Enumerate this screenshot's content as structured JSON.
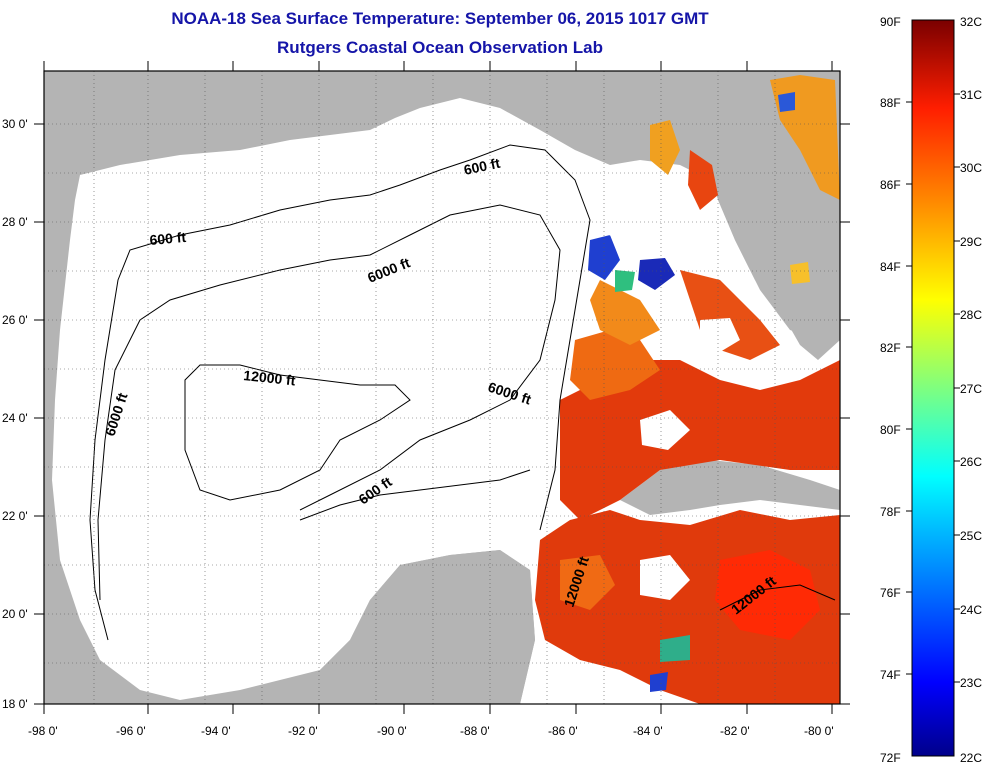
{
  "header": {
    "title": "NOAA-18 Sea Surface Temperature:  September 06, 2015 1017 GMT",
    "subtitle": "Rutgers Coastal Ocean Observation Lab"
  },
  "map": {
    "lon_labels": [
      "-98 0'",
      "-96 0'",
      "-94 0'",
      "-92 0'",
      "-90 0'",
      "-88 0'",
      "-86 0'",
      "-84 0'",
      "-82 0'",
      "-80 0'"
    ],
    "lat_labels": [
      "30 0'",
      "28 0'",
      "26 0'",
      "24 0'",
      "22 0'",
      "20 0'",
      "18 0'"
    ],
    "contour_labels": {
      "c600_n": "600 ft",
      "c600_w": "600 ft",
      "c6000_n": "6000 ft",
      "c6000_w": "6000 ft",
      "c12000_c": "12000 ft",
      "c6000_c": "6000 ft",
      "c600_s": "600 ft",
      "c12000_yuc": "12000 ft",
      "c12000_e": "12000 ft"
    },
    "colors": {
      "land": "#b4b4b4",
      "water_nodata": "#ffffff",
      "grid": "#444444"
    }
  },
  "colorbar": {
    "f_labels": [
      "90F",
      "88F",
      "86F",
      "84F",
      "82F",
      "80F",
      "78F",
      "76F",
      "74F",
      "72F"
    ],
    "c_labels": [
      "32C",
      "31C",
      "30C",
      "29C",
      "28C",
      "27C",
      "26C",
      "25C",
      "24C",
      "23C",
      "22C"
    ]
  }
}
